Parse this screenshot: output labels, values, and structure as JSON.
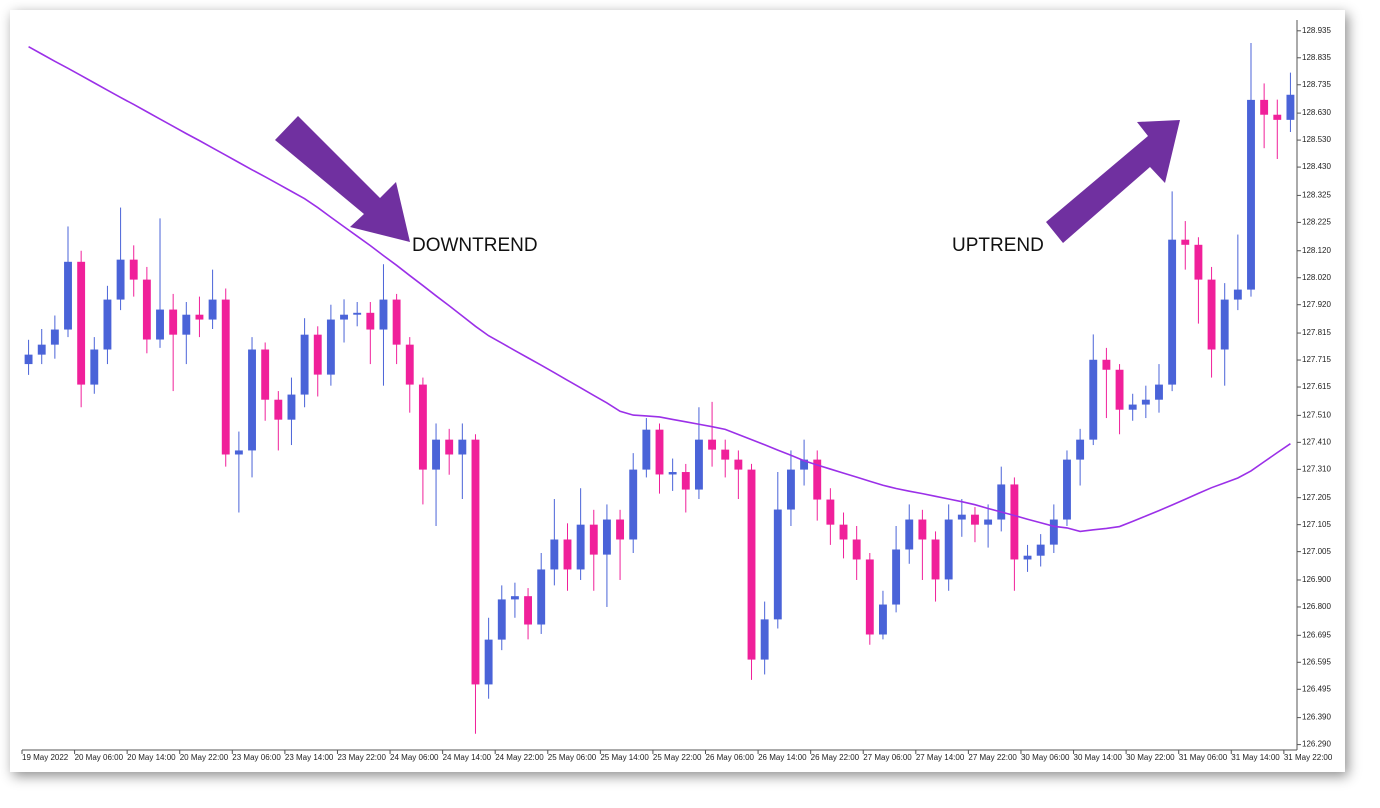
{
  "chart_data": {
    "type": "candlestick",
    "categories": [
      "19 May 2022",
      null,
      null,
      null,
      "20 May 06:00",
      null,
      null,
      null,
      "20 May 14:00",
      null,
      null,
      null,
      "20 May 22:00",
      null,
      null,
      null,
      "23 May 06:00",
      null,
      null,
      null,
      "23 May 14:00",
      null,
      null,
      null,
      "23 May 22:00",
      null,
      null,
      null,
      "24 May 06:00",
      null,
      null,
      null,
      "24 May 14:00",
      null,
      null,
      null,
      "24 May 22:00",
      null,
      null,
      null,
      "25 May 06:00",
      null,
      null,
      null,
      "25 May 14:00",
      null,
      null,
      null,
      "25 May 22:00",
      null,
      null,
      null,
      "26 May 06:00",
      null,
      null,
      null,
      "26 May 14:00",
      null,
      null,
      null,
      "26 May 22:00",
      null,
      null,
      null,
      "27 May 06:00",
      null,
      null,
      null,
      "27 May 14:00",
      null,
      null,
      null,
      "27 May 22:00",
      null,
      null,
      null,
      "30 May 06:00",
      null,
      null,
      null,
      "30 May 14:00",
      null,
      null,
      null,
      "30 May 22:00",
      null,
      null,
      null,
      "31 May 06:00",
      null,
      null,
      null,
      "31 May 14:00",
      null,
      null,
      null,
      "31 May 22:00"
    ],
    "open": [
      127.7,
      127.735,
      127.772,
      127.828,
      128.079,
      127.624,
      127.754,
      127.939,
      128.087,
      128.013,
      127.791,
      127.902,
      127.809,
      127.883,
      127.865,
      127.939,
      127.365,
      127.38,
      127.754,
      127.568,
      127.494,
      127.587,
      127.809,
      127.661,
      127.865,
      127.883,
      127.89,
      127.828,
      127.939,
      127.772,
      127.624,
      127.309,
      127.42,
      127.365,
      127.42,
      126.513,
      126.679,
      126.828,
      126.84,
      126.735,
      126.939,
      127.05,
      126.939,
      127.105,
      126.994,
      127.124,
      127.05,
      127.309,
      127.457,
      127.291,
      127.3,
      127.235,
      127.42,
      127.383,
      127.346,
      127.309,
      126.605,
      126.754,
      127.161,
      127.309,
      127.346,
      127.198,
      127.105,
      127.05,
      126.976,
      126.698,
      126.809,
      127.013,
      127.124,
      127.05,
      126.902,
      127.124,
      127.142,
      127.105,
      127.124,
      127.254,
      126.976,
      126.99,
      127.031,
      127.124,
      127.346,
      127.42,
      127.716,
      127.679,
      127.531,
      127.55,
      127.568,
      127.624,
      128.161,
      128.142,
      128.013,
      127.754,
      127.939,
      127.976,
      128.679,
      128.624,
      128.605
    ],
    "high": [
      127.79,
      127.83,
      127.88,
      128.21,
      128.12,
      127.8,
      127.99,
      128.28,
      128.14,
      128.06,
      128.24,
      127.96,
      127.93,
      127.95,
      128.05,
      127.98,
      127.45,
      127.8,
      127.78,
      127.6,
      127.65,
      127.87,
      127.84,
      127.92,
      127.94,
      127.93,
      127.93,
      128.07,
      127.96,
      127.8,
      127.65,
      127.48,
      127.46,
      127.48,
      127.44,
      126.76,
      126.88,
      126.89,
      126.87,
      127.0,
      127.2,
      127.11,
      127.24,
      127.16,
      127.18,
      127.16,
      127.37,
      127.5,
      127.48,
      127.35,
      127.33,
      127.54,
      127.56,
      127.42,
      127.38,
      127.33,
      126.82,
      127.3,
      127.38,
      127.42,
      127.38,
      127.24,
      127.15,
      127.1,
      127.0,
      126.86,
      127.1,
      127.18,
      127.16,
      127.08,
      127.18,
      127.2,
      127.17,
      127.18,
      127.32,
      127.28,
      127.03,
      127.07,
      127.18,
      127.38,
      127.46,
      127.81,
      127.76,
      127.7,
      127.59,
      127.62,
      127.7,
      128.34,
      128.23,
      128.17,
      128.06,
      128.0,
      128.18,
      128.89,
      128.74,
      128.68,
      128.78
    ],
    "low": [
      127.66,
      127.7,
      127.72,
      127.8,
      127.54,
      127.59,
      127.7,
      127.9,
      127.95,
      127.74,
      127.76,
      127.6,
      127.7,
      127.8,
      127.83,
      127.32,
      127.15,
      127.28,
      127.49,
      127.38,
      127.4,
      127.54,
      127.58,
      127.62,
      127.78,
      127.84,
      127.7,
      127.62,
      127.7,
      127.52,
      127.18,
      127.1,
      127.29,
      127.2,
      126.33,
      126.46,
      126.64,
      126.76,
      126.68,
      126.7,
      126.88,
      126.86,
      126.9,
      126.86,
      126.8,
      126.9,
      127.0,
      127.28,
      127.22,
      127.23,
      127.15,
      127.2,
      127.32,
      127.28,
      127.2,
      126.53,
      126.55,
      126.72,
      127.1,
      127.25,
      127.12,
      127.03,
      126.98,
      126.9,
      126.66,
      126.68,
      126.78,
      126.96,
      126.9,
      126.82,
      126.86,
      127.06,
      127.04,
      127.02,
      127.08,
      126.86,
      126.93,
      126.95,
      127.0,
      127.1,
      127.25,
      127.4,
      127.5,
      127.44,
      127.49,
      127.5,
      127.52,
      127.6,
      128.05,
      127.85,
      127.65,
      127.62,
      127.9,
      127.95,
      128.5,
      128.46,
      128.56
    ],
    "close": [
      127.735,
      127.772,
      127.828,
      128.079,
      127.624,
      127.754,
      127.939,
      128.087,
      128.013,
      127.791,
      127.902,
      127.809,
      127.883,
      127.865,
      127.939,
      127.365,
      127.38,
      127.754,
      127.568,
      127.494,
      127.587,
      127.809,
      127.661,
      127.865,
      127.883,
      127.89,
      127.828,
      127.939,
      127.772,
      127.624,
      127.309,
      127.42,
      127.365,
      127.42,
      126.513,
      126.679,
      126.828,
      126.84,
      126.735,
      126.939,
      127.05,
      126.939,
      127.105,
      126.994,
      127.124,
      127.05,
      127.309,
      127.457,
      127.291,
      127.3,
      127.235,
      127.42,
      127.383,
      127.346,
      127.309,
      126.605,
      126.754,
      127.161,
      127.309,
      127.346,
      127.198,
      127.105,
      127.05,
      126.976,
      126.698,
      126.809,
      127.013,
      127.124,
      127.05,
      126.902,
      127.124,
      127.142,
      127.105,
      127.124,
      127.254,
      126.976,
      126.99,
      127.031,
      127.124,
      127.346,
      127.42,
      127.716,
      127.679,
      127.531,
      127.55,
      127.568,
      127.624,
      128.161,
      128.142,
      128.013,
      127.754,
      127.939,
      127.976,
      128.679,
      128.624,
      128.605,
      128.698
    ],
    "up_color": "#4a63d8",
    "down_color": "#f0209a",
    "lines": [
      {
        "color": "#9b30e8",
        "values": [
          128.876,
          128.849,
          128.822,
          128.796,
          128.769,
          128.742,
          128.715,
          128.688,
          128.662,
          128.635,
          128.608,
          128.581,
          128.554,
          128.528,
          128.501,
          128.474,
          128.447,
          128.42,
          128.394,
          128.367,
          128.34,
          128.313,
          128.28,
          128.244,
          128.209,
          128.174,
          128.139,
          128.102,
          128.066,
          128.028,
          127.991,
          127.953,
          127.916,
          127.878,
          127.84,
          127.805,
          127.778,
          127.75,
          127.723,
          127.696,
          127.668,
          127.64,
          127.612,
          127.584,
          127.556,
          127.525,
          127.511,
          127.508,
          127.504,
          127.495,
          127.486,
          127.477,
          127.468,
          127.458,
          127.439,
          127.42,
          127.401,
          127.381,
          127.362,
          127.342,
          127.326,
          127.311,
          127.296,
          127.281,
          127.266,
          127.251,
          127.239,
          127.229,
          127.22,
          127.21,
          127.2,
          127.19,
          127.179,
          127.165,
          127.152,
          127.139,
          127.125,
          127.112,
          127.099,
          127.093,
          127.08,
          127.086,
          127.091,
          127.098,
          127.117,
          127.137,
          127.157,
          127.178,
          127.199,
          127.221,
          127.242,
          127.26,
          127.278,
          127.304,
          127.338,
          127.372,
          127.405
        ]
      }
    ],
    "ylim": [
      126.27,
      128.975
    ],
    "yticks": [
      128.935,
      128.835,
      128.735,
      {
        "value": 128.63,
        "label": "128.630"
      },
      {
        "value": 128.53,
        "label": "128.530"
      },
      {
        "value": 128.43,
        "label": "128.430"
      },
      128.325,
      128.225,
      {
        "value": 128.12,
        "label": "128.120"
      },
      {
        "value": 128.02,
        "label": "128.020"
      },
      {
        "value": 127.92,
        "label": "127.920"
      },
      127.815,
      127.715,
      127.615,
      {
        "value": 127.51,
        "label": "127.510"
      },
      {
        "value": 127.41,
        "label": "127.410"
      },
      {
        "value": 127.31,
        "label": "127.310"
      },
      127.205,
      127.105,
      127.005,
      {
        "value": 126.9,
        "label": "126.900"
      },
      {
        "value": 126.8,
        "label": "126.800"
      },
      126.695,
      126.595,
      126.495,
      {
        "value": 126.39,
        "label": "126.390"
      },
      {
        "value": 126.29,
        "label": "126.290"
      }
    ],
    "annotations": [
      {
        "text": "DOWNTREND"
      },
      {
        "text": "UPTREND"
      }
    ]
  }
}
